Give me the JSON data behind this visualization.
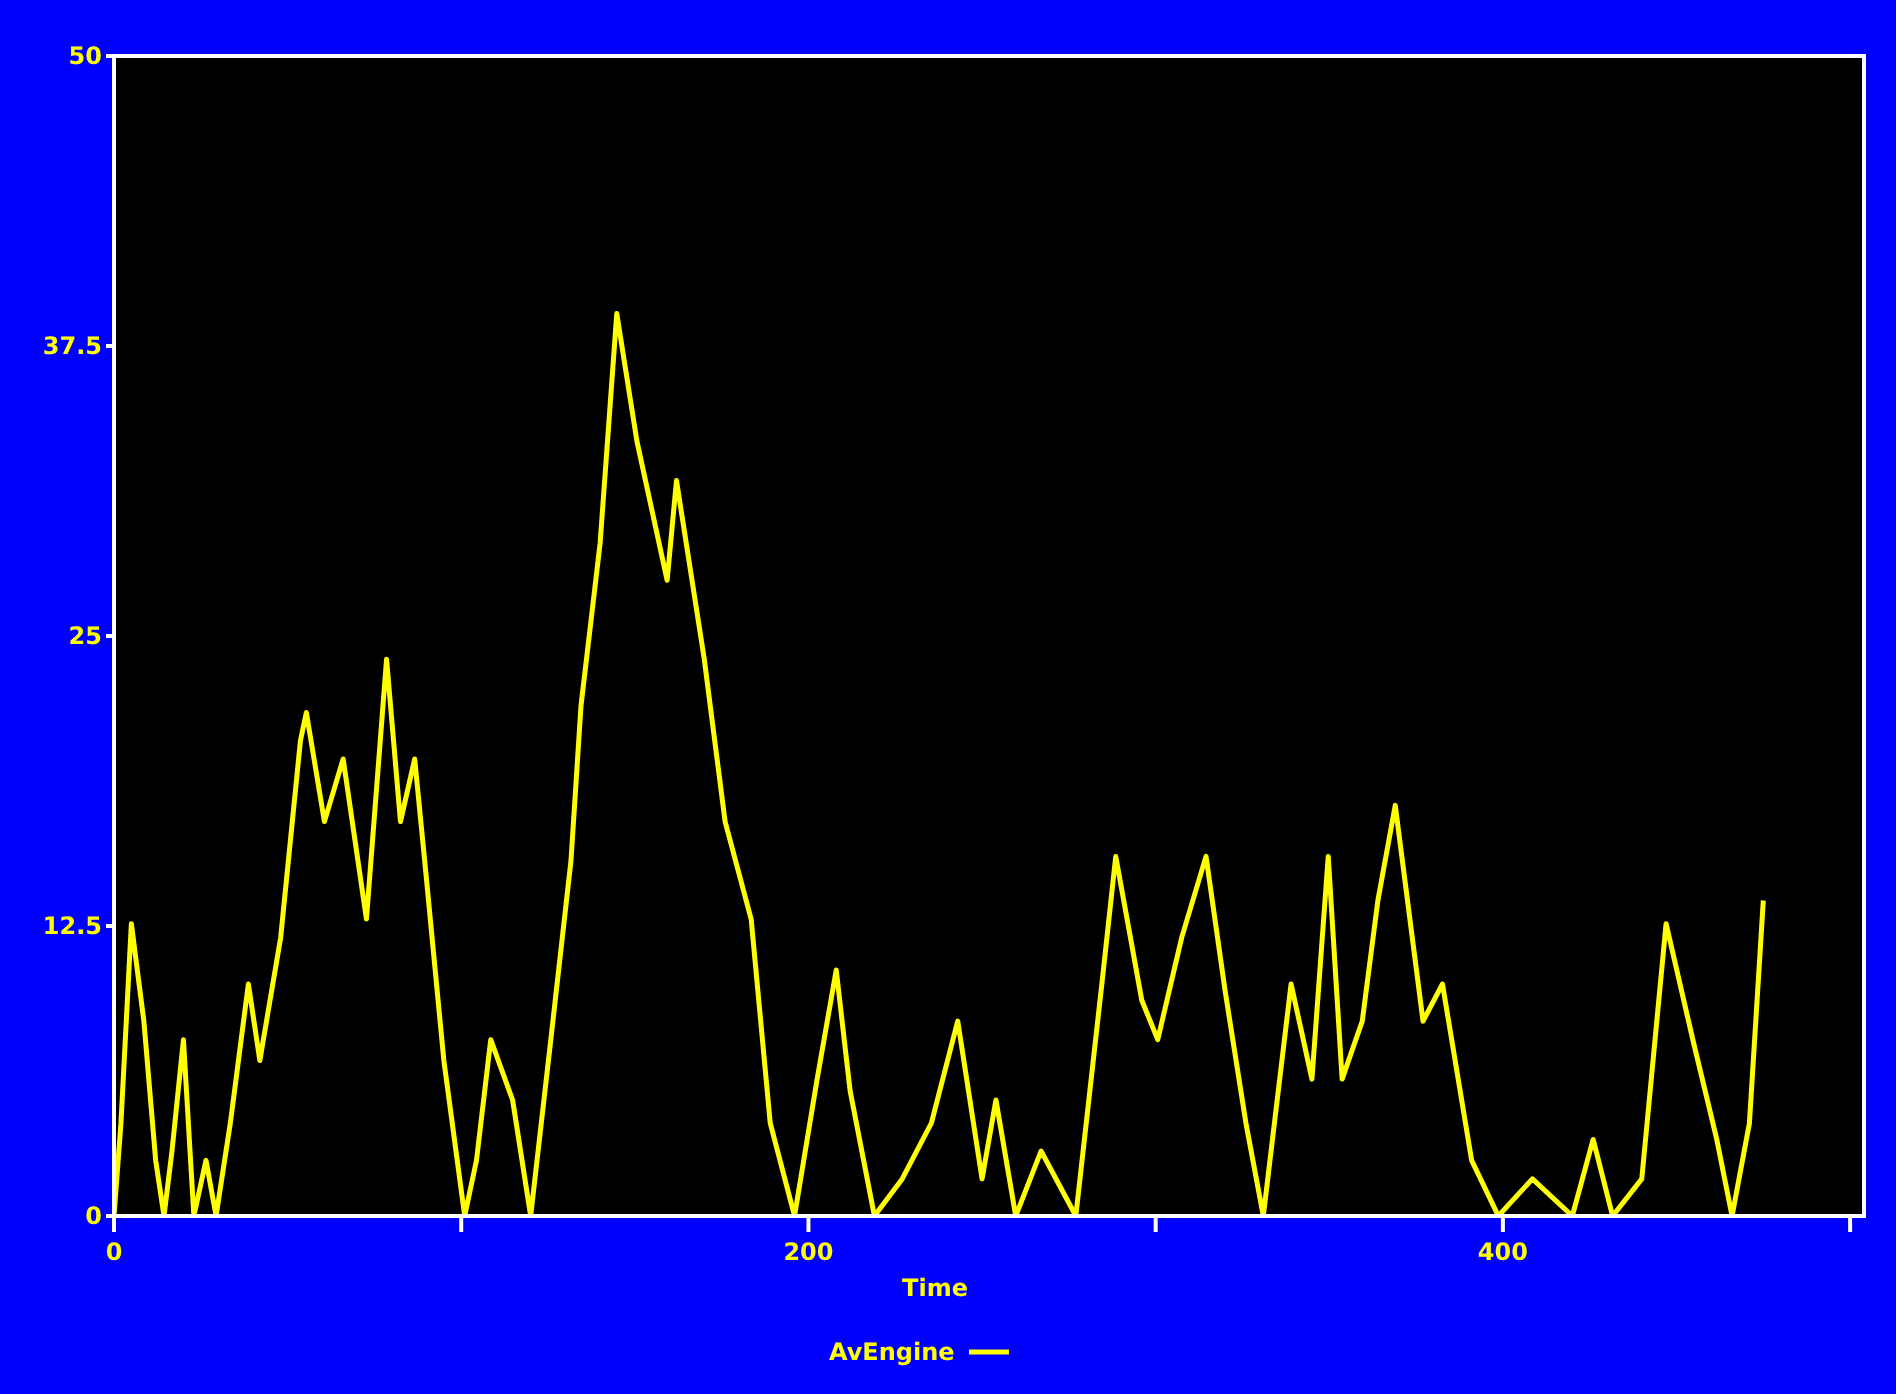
{
  "chart_data": {
    "type": "line",
    "xlabel": "Time",
    "xlim": [
      0,
      504
    ],
    "xticks": [
      0,
      {
        "value": 100,
        "label": null
      },
      200,
      {
        "value": 300,
        "label": null
      },
      400,
      {
        "value": 500,
        "label": null
      }
    ],
    "ylim": [
      0,
      50
    ],
    "yticks": [
      0,
      12.5,
      25,
      37.5,
      50
    ],
    "grid": false,
    "legend": "bottom",
    "marker": "none",
    "line_style": "solid",
    "series": [
      {
        "name": "AvEngine",
        "color": "#ffff00",
        "x": [
          0,
          2,
          5,
          8.6,
          12,
          14.4,
          16.7,
          20,
          23,
          26.5,
          29.4,
          33.5,
          38.7,
          42,
          48,
          53.7,
          55.4,
          60.6,
          66,
          72.7,
          78.5,
          82.5,
          86.6,
          90,
          95,
          101,
          104.4,
          108.5,
          114.8,
          120,
          125.8,
          131.6,
          134.5,
          140,
          144.8,
          150.6,
          159.3,
          162,
          170,
          176,
          183.5,
          189,
          196,
          202.5,
          208,
          212,
          219,
          227,
          235.4,
          243,
          250,
          254,
          259.7,
          267,
          277,
          284.5,
          288.5,
          296,
          300.6,
          307.5,
          314.5,
          320,
          326,
          331,
          339,
          345,
          349.7,
          353.7,
          359.5,
          364,
          369,
          377,
          382.6,
          391,
          398.7,
          408.5,
          420,
          426,
          431.6,
          440,
          447,
          454.7,
          461.6,
          466,
          471,
          475
        ],
        "values": [
          0,
          4,
          12.6,
          8.4,
          2.4,
          0,
          2.8,
          7.6,
          0,
          2.4,
          0,
          4,
          10,
          6.7,
          12,
          20.5,
          21.7,
          17,
          19.7,
          12.8,
          24,
          17,
          19.7,
          14.5,
          6.7,
          0,
          2.4,
          7.6,
          5,
          0,
          7.6,
          15.3,
          22,
          29,
          38.9,
          33.4,
          27.4,
          31.7,
          24,
          17,
          12.8,
          4,
          0,
          5.9,
          10.6,
          5.4,
          0,
          1.6,
          4,
          8.4,
          1.6,
          5,
          0,
          2.8,
          0,
          10,
          15.5,
          9.3,
          7.6,
          12,
          15.5,
          9.7,
          4,
          0,
          10,
          5.9,
          15.5,
          5.9,
          8.4,
          13.6,
          17.7,
          8.4,
          10,
          2.4,
          0,
          1.6,
          0,
          3.3,
          0,
          1.6,
          12.6,
          7.6,
          3.3,
          0,
          4,
          13.6
        ]
      }
    ]
  }
}
